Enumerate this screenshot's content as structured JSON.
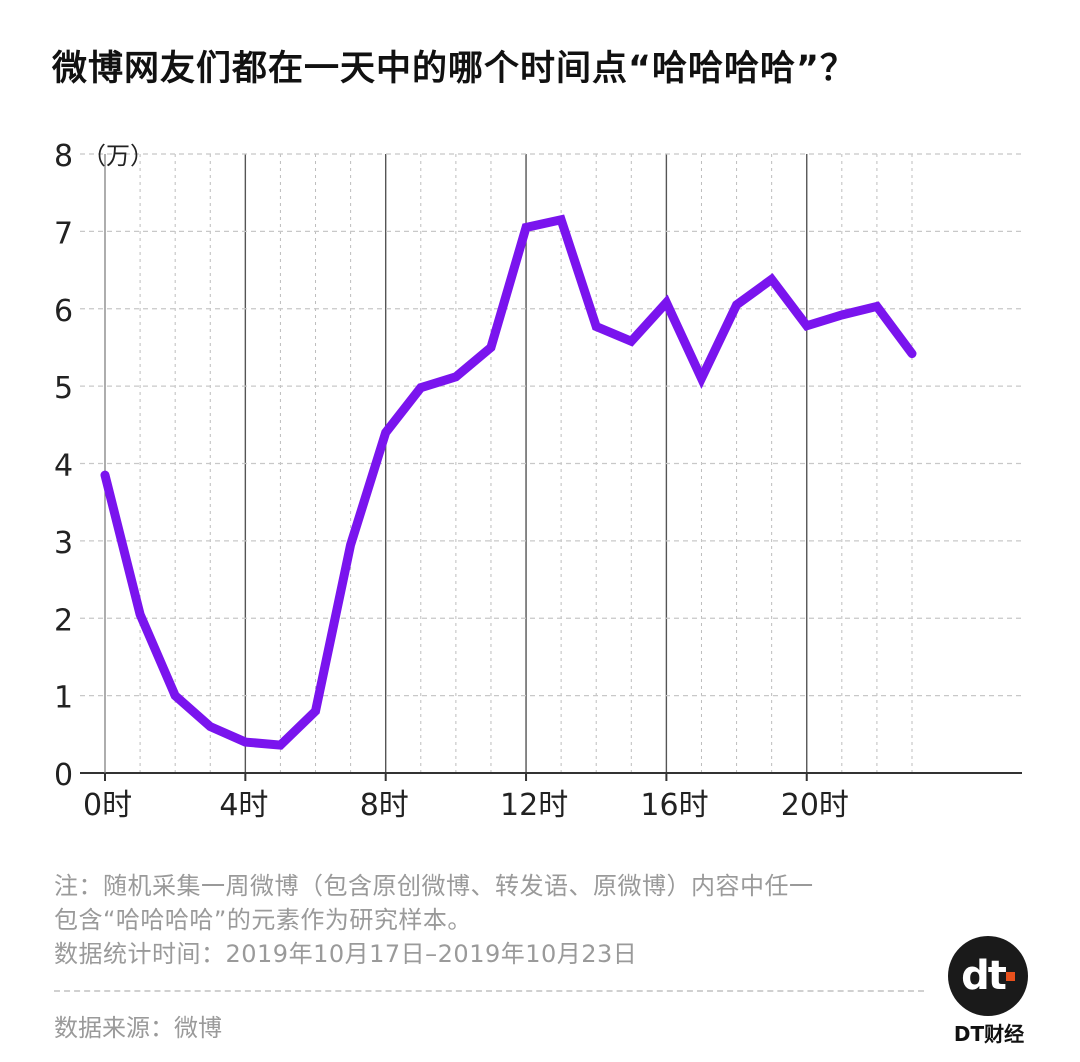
{
  "title": "微博网友们都在一天中的哪个时间点“哈哈哈哈”？",
  "chart_data": {
    "type": "line",
    "title": "微博网友们都在一天中的哪个时间点“哈哈哈哈”？",
    "ylabel": "",
    "y_unit": "（万）",
    "ylim": [
      0,
      8
    ],
    "y_ticks": [
      "0",
      "1",
      "2",
      "3",
      "4",
      "5",
      "6",
      "7",
      "8"
    ],
    "x_tick_labels": [
      "0时",
      "4时",
      "8时",
      "12时",
      "16时",
      "20时"
    ],
    "x_tick_hours": [
      0,
      4,
      8,
      12,
      16,
      20
    ],
    "x": [
      0,
      1,
      2,
      3,
      4,
      5,
      6,
      7,
      8,
      9,
      10,
      11,
      12,
      13,
      14,
      15,
      16,
      17,
      18,
      19,
      20,
      21,
      22,
      23
    ],
    "series": [
      {
        "values": [
          3.85,
          2.05,
          1.0,
          0.6,
          0.4,
          0.36,
          0.8,
          2.95,
          4.4,
          4.98,
          5.12,
          5.5,
          7.05,
          7.15,
          5.77,
          5.58,
          6.08,
          5.1,
          6.05,
          6.38,
          5.78,
          5.92,
          6.03,
          5.42
        ],
        "color": "#7a14ee"
      }
    ],
    "grid": true,
    "legend": "none"
  },
  "colors": {
    "line": "#7a14ee",
    "grid": "#c8c8c8",
    "axis": "#333333",
    "note": "#9a9a9a"
  },
  "notes": {
    "line1": "注：随机采集一周微博（包含原创微博、转发语、原微博）内容中任一",
    "line2": "包含“哈哈哈哈”的元素作为研究样本。",
    "line3": "数据统计时间：2019年10月17日–2019年10月23日"
  },
  "source": "数据来源：微博",
  "brand": {
    "logo_text": "dt",
    "name": "DT财经"
  }
}
